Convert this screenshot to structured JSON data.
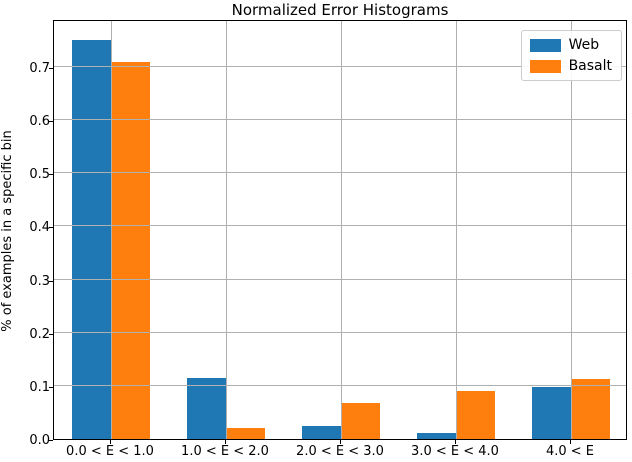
{
  "chart_data": {
    "type": "bar",
    "title": "Normalized Error Histograms",
    "xlabel": "",
    "ylabel": "% of examples in a specific bin",
    "categories": [
      "0.0 < E < 1.0",
      "1.0 < E < 2.0",
      "2.0 < E < 3.0",
      "3.0 < E < 4.0",
      "4.0 < E"
    ],
    "series": [
      {
        "name": "Web",
        "color": "#1f77b4",
        "values": [
          0.75,
          0.115,
          0.025,
          0.012,
          0.098
        ]
      },
      {
        "name": "Basalt",
        "color": "#ff7f0e",
        "values": [
          0.71,
          0.021,
          0.068,
          0.091,
          0.113
        ]
      }
    ],
    "ylim": [
      0.0,
      0.79
    ],
    "yticks": [
      0.0,
      0.1,
      0.2,
      0.3,
      0.4,
      0.5,
      0.6,
      0.7
    ],
    "grid": true,
    "grid_color": "#b0b0b0",
    "legend_position": "upper right"
  }
}
